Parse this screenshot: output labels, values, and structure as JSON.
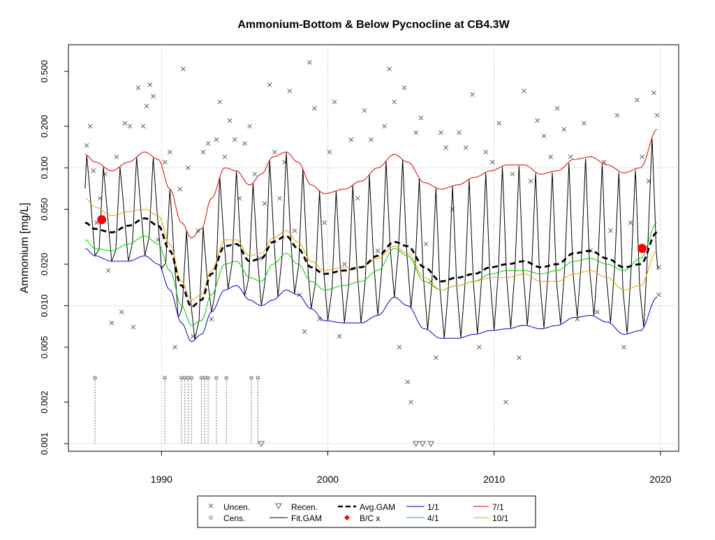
{
  "chart_data": {
    "type": "line",
    "title": "Ammonium-Bottom & Below Pycnocline at CB4.3W",
    "xlabel": "",
    "ylabel": "Ammonium [mg/L]",
    "y_scale": "log",
    "xlim": [
      1984.4,
      2021.1
    ],
    "ylim": [
      0.00088,
      0.78
    ],
    "x_ticks": [
      1990,
      2000,
      2010,
      2020
    ],
    "y_ticks": [
      0.001,
      0.002,
      0.005,
      0.01,
      0.02,
      0.05,
      0.1,
      0.2,
      0.5
    ],
    "y_tick_labels": [
      "0.001",
      "0.002",
      "0.005",
      "0.010",
      "0.020",
      "0.050",
      "0.100",
      "0.200",
      "0.500"
    ],
    "grid": true,
    "legend_position": "bottom-center",
    "colors": {
      "avg_gam": "#000000",
      "fit_gam": "#000000",
      "jan": "#0000cc",
      "apr": "#00cc00",
      "jul": "#dd0000",
      "oct": "#f0a000",
      "bc": "#ff0000",
      "points": "#606060",
      "grid": "#c8c8c8"
    },
    "legend": [
      {
        "key": "uncen",
        "label": "Uncen."
      },
      {
        "key": "cens",
        "label": "Cens."
      },
      {
        "key": "recen",
        "label": "Recen."
      },
      {
        "key": "fit",
        "label": "Fit.GAM"
      },
      {
        "key": "avg",
        "label": "Avg.GAM"
      },
      {
        "key": "bc",
        "label": "B/C x"
      },
      {
        "key": "jan",
        "label": "1/1"
      },
      {
        "key": "apr",
        "label": "4/1"
      },
      {
        "key": "jul",
        "label": "7/1"
      },
      {
        "key": "oct",
        "label": "10/1"
      }
    ],
    "series": [
      {
        "name": "Avg.GAM",
        "x": [
          1985.4,
          1986.0,
          1987.0,
          1988.0,
          1989.0,
          1989.8,
          1990.5,
          1991.2,
          1991.8,
          1992.4,
          1993.0,
          1993.8,
          1994.5,
          1995.3,
          1996.0,
          1996.7,
          1997.5,
          1998.2,
          1999.0,
          1999.8,
          2001.0,
          2002.0,
          2003.0,
          2004.0,
          2004.8,
          2005.8,
          2006.8,
          2007.8,
          2008.8,
          2009.8,
          2010.8,
          2011.8,
          2012.8,
          2013.8,
          2014.8,
          2015.8,
          2016.8,
          2017.8,
          2018.8,
          2019.8
        ],
        "y": [
          0.04,
          0.036,
          0.034,
          0.038,
          0.043,
          0.038,
          0.025,
          0.014,
          0.0098,
          0.011,
          0.017,
          0.027,
          0.028,
          0.021,
          0.022,
          0.029,
          0.032,
          0.026,
          0.019,
          0.017,
          0.018,
          0.019,
          0.023,
          0.029,
          0.027,
          0.019,
          0.015,
          0.016,
          0.017,
          0.019,
          0.02,
          0.021,
          0.019,
          0.02,
          0.024,
          0.025,
          0.022,
          0.019,
          0.02,
          0.034
        ]
      },
      {
        "name": "1/1",
        "x": [
          1985.4,
          1986.0,
          1987.0,
          1988.0,
          1989.0,
          1989.8,
          1990.5,
          1991.2,
          1991.8,
          1992.4,
          1993.0,
          1993.8,
          1994.5,
          1995.3,
          1996.0,
          1996.7,
          1997.5,
          1998.2,
          1999.0,
          1999.8,
          2001.0,
          2002.0,
          2003.0,
          2004.0,
          2004.8,
          2005.8,
          2006.8,
          2007.8,
          2008.8,
          2009.8,
          2010.8,
          2011.8,
          2012.8,
          2013.8,
          2014.8,
          2015.8,
          2016.8,
          2017.8,
          2018.8,
          2019.8
        ],
        "y": [
          0.026,
          0.023,
          0.021,
          0.021,
          0.023,
          0.02,
          0.013,
          0.0075,
          0.0055,
          0.0062,
          0.009,
          0.013,
          0.014,
          0.011,
          0.01,
          0.011,
          0.013,
          0.012,
          0.0095,
          0.0078,
          0.0075,
          0.0075,
          0.0085,
          0.0115,
          0.01,
          0.0068,
          0.0058,
          0.0058,
          0.0062,
          0.0066,
          0.0068,
          0.0072,
          0.0068,
          0.0072,
          0.0082,
          0.0085,
          0.0076,
          0.0062,
          0.0066,
          0.0115
        ]
      },
      {
        "name": "4/1",
        "x": [
          1985.4,
          1986.0,
          1987.0,
          1988.0,
          1989.0,
          1989.8,
          1990.5,
          1991.2,
          1991.8,
          1992.4,
          1993.0,
          1993.8,
          1994.5,
          1995.3,
          1996.0,
          1996.7,
          1997.5,
          1998.2,
          1999.0,
          1999.8,
          2001.0,
          2002.0,
          2003.0,
          2004.0,
          2004.8,
          2005.8,
          2006.8,
          2007.8,
          2008.8,
          2009.8,
          2010.8,
          2011.8,
          2012.8,
          2013.8,
          2014.8,
          2015.8,
          2016.8,
          2017.8,
          2018.8,
          2019.8
        ],
        "y": [
          0.03,
          0.026,
          0.025,
          0.028,
          0.032,
          0.028,
          0.018,
          0.01,
          0.0072,
          0.0078,
          0.012,
          0.02,
          0.021,
          0.016,
          0.015,
          0.02,
          0.024,
          0.02,
          0.015,
          0.013,
          0.014,
          0.015,
          0.018,
          0.026,
          0.023,
          0.015,
          0.013,
          0.014,
          0.015,
          0.017,
          0.018,
          0.018,
          0.017,
          0.018,
          0.021,
          0.022,
          0.02,
          0.018,
          0.022,
          0.04
        ]
      },
      {
        "name": "7/1",
        "x": [
          1985.4,
          1986.0,
          1987.0,
          1988.0,
          1989.0,
          1989.8,
          1990.5,
          1991.2,
          1991.8,
          1992.4,
          1993.0,
          1993.8,
          1994.5,
          1995.3,
          1996.0,
          1996.7,
          1997.5,
          1998.2,
          1999.0,
          1999.8,
          2001.0,
          2002.0,
          2003.0,
          2004.0,
          2004.8,
          2005.8,
          2006.8,
          2007.8,
          2008.8,
          2009.8,
          2010.8,
          2011.8,
          2012.8,
          2013.8,
          2014.8,
          2015.8,
          2016.8,
          2017.8,
          2018.8,
          2019.8
        ],
        "y": [
          0.125,
          0.11,
          0.095,
          0.11,
          0.13,
          0.115,
          0.07,
          0.04,
          0.031,
          0.036,
          0.06,
          0.1,
          0.095,
          0.075,
          0.09,
          0.12,
          0.13,
          0.11,
          0.075,
          0.065,
          0.07,
          0.08,
          0.1,
          0.125,
          0.11,
          0.078,
          0.07,
          0.075,
          0.085,
          0.095,
          0.105,
          0.105,
          0.09,
          0.095,
          0.115,
          0.12,
          0.105,
          0.092,
          0.1,
          0.19
        ]
      },
      {
        "name": "10/1",
        "x": [
          1985.4,
          1986.0,
          1987.0,
          1988.0,
          1989.0,
          1989.8,
          1990.5,
          1991.2,
          1991.8,
          1992.4,
          1993.0,
          1993.8,
          1994.5,
          1995.3,
          1996.0,
          1996.7,
          1997.5,
          1998.2,
          1999.0,
          1999.8,
          2001.0,
          2002.0,
          2003.0,
          2004.0,
          2004.8,
          2005.8,
          2006.8,
          2007.8,
          2008.8,
          2009.8,
          2010.8,
          2011.8,
          2012.8,
          2013.8,
          2014.8,
          2015.8,
          2016.8,
          2017.8,
          2018.8,
          2019.8
        ],
        "y": [
          0.06,
          0.052,
          0.045,
          0.048,
          0.05,
          0.045,
          0.028,
          0.015,
          0.011,
          0.012,
          0.018,
          0.03,
          0.03,
          0.023,
          0.024,
          0.031,
          0.035,
          0.029,
          0.021,
          0.018,
          0.019,
          0.019,
          0.022,
          0.027,
          0.024,
          0.016,
          0.013,
          0.014,
          0.015,
          0.016,
          0.016,
          0.017,
          0.015,
          0.015,
          0.017,
          0.018,
          0.016,
          0.013,
          0.014,
          0.025
        ]
      },
      {
        "name": "B/C x",
        "x": [
          1986.4,
          2018.9
        ],
        "y": [
          0.042,
          0.026
        ]
      }
    ],
    "uncensored_points": [
      {
        "x": 1985.5,
        "y": 0.145
      },
      {
        "x": 1985.7,
        "y": 0.2
      },
      {
        "x": 1985.9,
        "y": 0.095
      },
      {
        "x": 1986.1,
        "y": 0.04
      },
      {
        "x": 1986.3,
        "y": 0.06
      },
      {
        "x": 1986.6,
        "y": 0.09
      },
      {
        "x": 1986.8,
        "y": 0.018
      },
      {
        "x": 1987.0,
        "y": 0.0075
      },
      {
        "x": 1987.3,
        "y": 0.12
      },
      {
        "x": 1987.6,
        "y": 0.009
      },
      {
        "x": 1987.8,
        "y": 0.21
      },
      {
        "x": 1988.1,
        "y": 0.2
      },
      {
        "x": 1988.3,
        "y": 0.007
      },
      {
        "x": 1988.6,
        "y": 0.38
      },
      {
        "x": 1988.9,
        "y": 0.2
      },
      {
        "x": 1989.1,
        "y": 0.28
      },
      {
        "x": 1989.3,
        "y": 0.4
      },
      {
        "x": 1989.5,
        "y": 0.33
      },
      {
        "x": 1989.8,
        "y": 0.03
      },
      {
        "x": 1990.2,
        "y": 0.11
      },
      {
        "x": 1990.5,
        "y": 0.13
      },
      {
        "x": 1990.8,
        "y": 0.005
      },
      {
        "x": 1991.1,
        "y": 0.07
      },
      {
        "x": 1991.3,
        "y": 0.52
      },
      {
        "x": 1991.6,
        "y": 0.1
      },
      {
        "x": 1991.9,
        "y": 0.006
      },
      {
        "x": 1992.2,
        "y": 0.035
      },
      {
        "x": 1992.5,
        "y": 0.13
      },
      {
        "x": 1992.8,
        "y": 0.15
      },
      {
        "x": 1993.0,
        "y": 0.008
      },
      {
        "x": 1993.3,
        "y": 0.16
      },
      {
        "x": 1993.5,
        "y": 0.3
      },
      {
        "x": 1993.8,
        "y": 0.12
      },
      {
        "x": 1994.1,
        "y": 0.22
      },
      {
        "x": 1994.4,
        "y": 0.16
      },
      {
        "x": 1994.7,
        "y": 0.06
      },
      {
        "x": 1995.0,
        "y": 0.15
      },
      {
        "x": 1995.3,
        "y": 0.2
      },
      {
        "x": 1995.6,
        "y": 0.09
      },
      {
        "x": 1995.9,
        "y": 0.022
      },
      {
        "x": 1996.2,
        "y": 0.055
      },
      {
        "x": 1996.5,
        "y": 0.4
      },
      {
        "x": 1996.8,
        "y": 0.13
      },
      {
        "x": 1997.1,
        "y": 0.06
      },
      {
        "x": 1997.4,
        "y": 0.11
      },
      {
        "x": 1997.7,
        "y": 0.36
      },
      {
        "x": 1998.0,
        "y": 0.035
      },
      {
        "x": 1998.3,
        "y": 0.012
      },
      {
        "x": 1998.6,
        "y": 0.0065
      },
      {
        "x": 1998.9,
        "y": 0.58
      },
      {
        "x": 1999.2,
        "y": 0.27
      },
      {
        "x": 1999.5,
        "y": 0.008
      },
      {
        "x": 1999.8,
        "y": 0.04
      },
      {
        "x": 2000.1,
        "y": 0.13
      },
      {
        "x": 2000.4,
        "y": 0.3
      },
      {
        "x": 2000.7,
        "y": 0.006
      },
      {
        "x": 2001.0,
        "y": 0.02
      },
      {
        "x": 2001.4,
        "y": 0.16
      },
      {
        "x": 2001.8,
        "y": 0.06
      },
      {
        "x": 2002.2,
        "y": 0.26
      },
      {
        "x": 2002.6,
        "y": 0.16
      },
      {
        "x": 2003.0,
        "y": 0.025
      },
      {
        "x": 2003.4,
        "y": 0.2
      },
      {
        "x": 2003.7,
        "y": 0.52
      },
      {
        "x": 2004.0,
        "y": 0.3
      },
      {
        "x": 2004.3,
        "y": 0.005
      },
      {
        "x": 2004.6,
        "y": 0.38
      },
      {
        "x": 2004.8,
        "y": 0.0028
      },
      {
        "x": 2005.0,
        "y": 0.002
      },
      {
        "x": 2005.3,
        "y": 0.18
      },
      {
        "x": 2005.6,
        "y": 0.23
      },
      {
        "x": 2005.9,
        "y": 0.028
      },
      {
        "x": 2006.2,
        "y": 0.015
      },
      {
        "x": 2006.5,
        "y": 0.0042
      },
      {
        "x": 2006.8,
        "y": 0.18
      },
      {
        "x": 2007.1,
        "y": 0.14
      },
      {
        "x": 2007.5,
        "y": 0.05
      },
      {
        "x": 2007.9,
        "y": 0.18
      },
      {
        "x": 2008.3,
        "y": 0.14
      },
      {
        "x": 2008.7,
        "y": 0.34
      },
      {
        "x": 2009.1,
        "y": 0.005
      },
      {
        "x": 2009.5,
        "y": 0.13
      },
      {
        "x": 2009.9,
        "y": 0.11
      },
      {
        "x": 2010.3,
        "y": 0.21
      },
      {
        "x": 2010.7,
        "y": 0.002
      },
      {
        "x": 2011.1,
        "y": 0.09
      },
      {
        "x": 2011.5,
        "y": 0.0042
      },
      {
        "x": 2011.8,
        "y": 0.36
      },
      {
        "x": 2012.2,
        "y": 0.08
      },
      {
        "x": 2012.6,
        "y": 0.22
      },
      {
        "x": 2013.0,
        "y": 0.17
      },
      {
        "x": 2013.4,
        "y": 0.12
      },
      {
        "x": 2013.8,
        "y": 0.27
      },
      {
        "x": 2014.2,
        "y": 0.19
      },
      {
        "x": 2014.6,
        "y": 0.12
      },
      {
        "x": 2015.0,
        "y": 0.008
      },
      {
        "x": 2015.4,
        "y": 0.21
      },
      {
        "x": 2015.8,
        "y": 0.025
      },
      {
        "x": 2016.2,
        "y": 0.009
      },
      {
        "x": 2016.6,
        "y": 0.11
      },
      {
        "x": 2017.0,
        "y": 0.035
      },
      {
        "x": 2017.4,
        "y": 0.24
      },
      {
        "x": 2017.8,
        "y": 0.005
      },
      {
        "x": 2018.2,
        "y": 0.04
      },
      {
        "x": 2018.6,
        "y": 0.31
      },
      {
        "x": 2018.9,
        "y": 0.12
      },
      {
        "x": 2019.3,
        "y": 0.08
      },
      {
        "x": 2019.6,
        "y": 0.35
      },
      {
        "x": 2019.8,
        "y": 0.24
      },
      {
        "x": 2019.9,
        "y": 0.019
      },
      {
        "x": 2019.9,
        "y": 0.012
      }
    ],
    "censored_points": [
      {
        "x": 1986.0,
        "y": 0.003
      },
      {
        "x": 1990.2,
        "y": 0.003
      },
      {
        "x": 1991.2,
        "y": 0.003
      },
      {
        "x": 1991.4,
        "y": 0.003
      },
      {
        "x": 1991.6,
        "y": 0.003
      },
      {
        "x": 1991.8,
        "y": 0.003
      },
      {
        "x": 1992.4,
        "y": 0.003
      },
      {
        "x": 1992.6,
        "y": 0.003
      },
      {
        "x": 1992.8,
        "y": 0.003
      },
      {
        "x": 1993.3,
        "y": 0.003
      },
      {
        "x": 1993.9,
        "y": 0.003
      },
      {
        "x": 1995.4,
        "y": 0.003
      },
      {
        "x": 1995.8,
        "y": 0.003
      }
    ],
    "recensored_points": [
      {
        "x": 1996.0,
        "y": 0.001
      },
      {
        "x": 2005.3,
        "y": 0.001
      },
      {
        "x": 2005.7,
        "y": 0.001
      },
      {
        "x": 2006.2,
        "y": 0.001
      }
    ]
  }
}
